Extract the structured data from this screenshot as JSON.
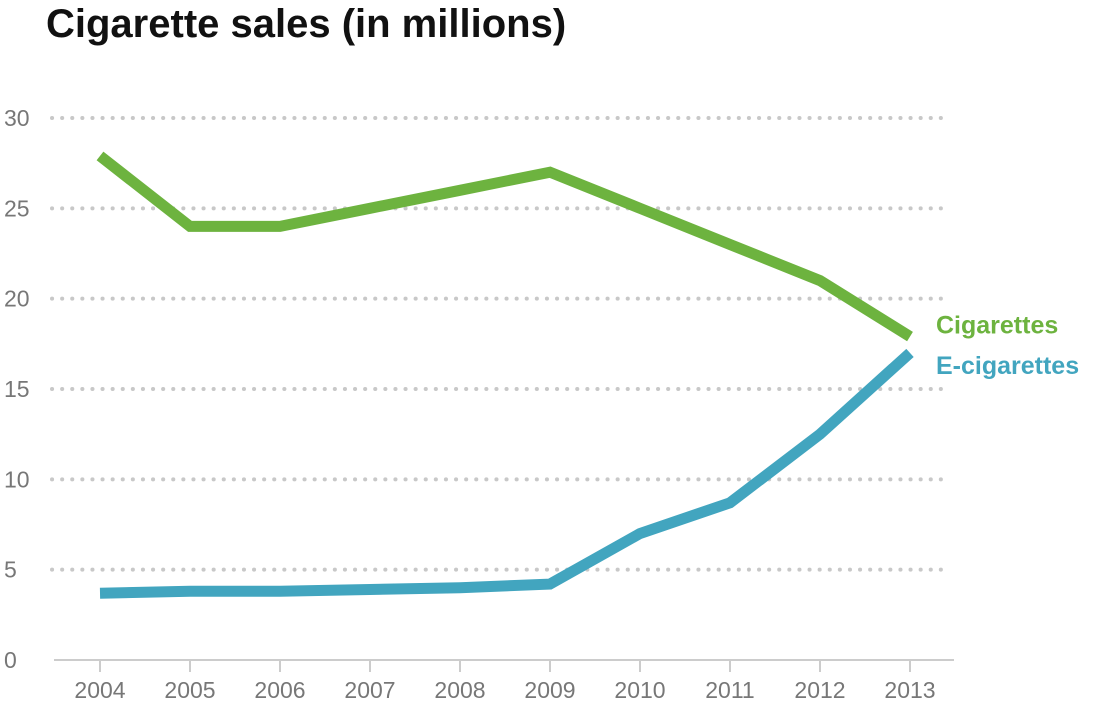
{
  "chart_data": {
    "type": "line",
    "title": "Cigarette sales (in millions)",
    "xlabel": "",
    "ylabel": "",
    "x": [
      "2004",
      "2005",
      "2006",
      "2007",
      "2008",
      "2009",
      "2010",
      "2011",
      "2012",
      "2013"
    ],
    "ylim": [
      0,
      30
    ],
    "yticks": [
      "0",
      "5",
      "10",
      "15",
      "20",
      "25",
      "30"
    ],
    "grid": true,
    "series": [
      {
        "name": "Cigarettes",
        "color": "#6db33f",
        "values": [
          27.9,
          24.0,
          24.0,
          25.0,
          26.0,
          27.0,
          25.0,
          23.0,
          21.0,
          17.9
        ]
      },
      {
        "name": "E-cigarettes",
        "color": "#42a5bf",
        "values": [
          3.7,
          3.8,
          3.8,
          3.9,
          4.0,
          4.2,
          7.0,
          8.7,
          12.5,
          17.0
        ]
      }
    ]
  }
}
